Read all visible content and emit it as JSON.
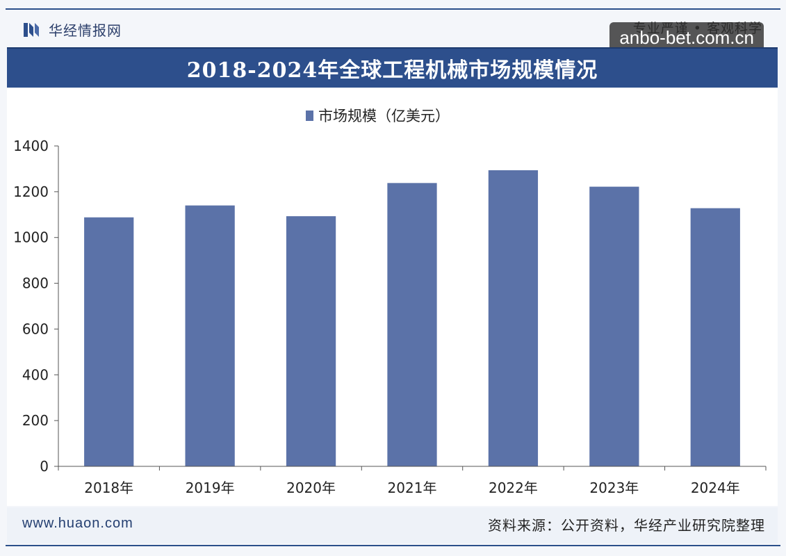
{
  "header": {
    "logo_text": "华经情报网",
    "slogan": "专业严谨 • 客观科学",
    "watermark_tag": "anbo-bet.com.cn"
  },
  "footer": {
    "url": "www.huaon.com",
    "source": "资料来源：公开资料，华经产业研究院整理"
  },
  "colors": {
    "bar": "#5b72a8",
    "title_bar": "#2d4f8c"
  },
  "chart_data": {
    "type": "bar",
    "title": "2018-2024年全球工程机械市场规模情况",
    "categories": [
      "2018年",
      "2019年",
      "2020年",
      "2021年",
      "2022年",
      "2023年",
      "2024年"
    ],
    "series": [
      {
        "name": "市场规模（亿美元）",
        "values": [
          1088,
          1140,
          1093,
          1238,
          1294,
          1222,
          1128
        ]
      }
    ],
    "ylim": [
      0,
      1400
    ],
    "yticks": [
      0,
      200,
      400,
      600,
      800,
      1000,
      1200,
      1400
    ],
    "legend_position": "top-center",
    "grid": false
  }
}
